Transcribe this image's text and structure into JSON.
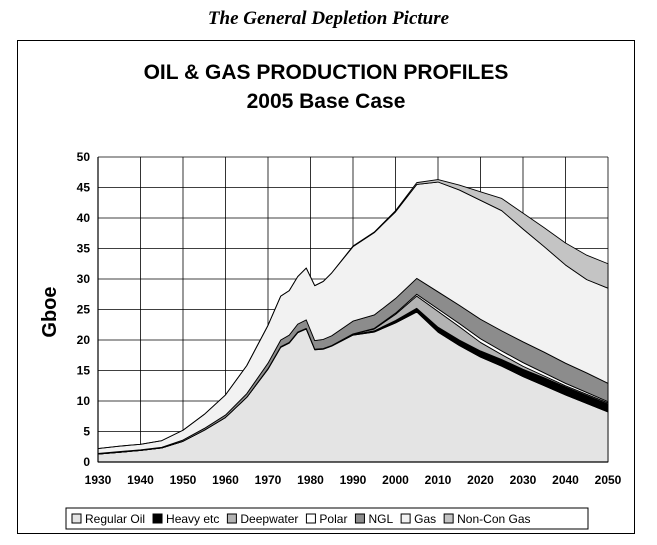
{
  "page_title": "The General Depletion Picture",
  "chart_data": {
    "type": "area",
    "stacked": true,
    "title": "OIL & GAS PRODUCTION PROFILES",
    "subtitle": "2005 Base Case",
    "xlabel": "",
    "ylabel": "Gboe",
    "xlim": [
      1930,
      2050
    ],
    "ylim": [
      0,
      50
    ],
    "grid": true,
    "legend_position": "bottom",
    "x_ticks": [
      1930,
      1940,
      1950,
      1960,
      1970,
      1980,
      1990,
      2000,
      2010,
      2020,
      2030,
      2040,
      2050
    ],
    "y_ticks": [
      0,
      5,
      10,
      15,
      20,
      25,
      30,
      35,
      40,
      45,
      50
    ],
    "x": [
      1930,
      1935,
      1940,
      1945,
      1950,
      1955,
      1960,
      1965,
      1970,
      1973,
      1975,
      1977,
      1979,
      1981,
      1983,
      1985,
      1990,
      1995,
      2000,
      2005,
      2010,
      2015,
      2020,
      2025,
      2030,
      2035,
      2040,
      2045,
      2050
    ],
    "series": [
      {
        "name": "Regular Oil",
        "color": "#e4e4e4",
        "values": [
          1.3,
          1.6,
          1.9,
          2.3,
          3.4,
          5.2,
          7.3,
          10.6,
          15.2,
          18.8,
          19.5,
          21.2,
          21.8,
          18.4,
          18.5,
          19.0,
          20.8,
          21.3,
          22.8,
          24.6,
          21.3,
          19.1,
          17.2,
          15.7,
          14.0,
          12.5,
          11.0,
          9.6,
          8.2
        ]
      },
      {
        "name": "Heavy etc",
        "color": "#000000",
        "values": [
          0,
          0,
          0,
          0,
          0,
          0,
          0,
          0,
          0.1,
          0.1,
          0.1,
          0.1,
          0.1,
          0.1,
          0.1,
          0.1,
          0.1,
          0.2,
          0.4,
          0.6,
          0.8,
          0.9,
          1.0,
          1.1,
          1.2,
          1.3,
          1.3,
          1.3,
          1.3
        ]
      },
      {
        "name": "Deepwater",
        "color": "#b3b3b3",
        "values": [
          0,
          0,
          0,
          0,
          0,
          0,
          0,
          0,
          0,
          0,
          0,
          0,
          0,
          0,
          0,
          0,
          0.1,
          0.3,
          1.0,
          2.0,
          2.6,
          2.2,
          1.4,
          0.8,
          0.5,
          0.3,
          0.2,
          0.2,
          0.2
        ]
      },
      {
        "name": "Polar",
        "color": "#ffffff",
        "values": [
          0,
          0,
          0,
          0,
          0,
          0,
          0,
          0,
          0,
          0,
          0,
          0,
          0,
          0,
          0,
          0,
          0,
          0.1,
          0.2,
          0.3,
          0.4,
          0.5,
          0.6,
          0.6,
          0.6,
          0.5,
          0.4,
          0.3,
          0.2
        ]
      },
      {
        "name": "NGL",
        "color": "#8c8c8c",
        "values": [
          0.1,
          0.1,
          0.1,
          0.1,
          0.2,
          0.3,
          0.4,
          0.6,
          0.9,
          1.1,
          1.2,
          1.3,
          1.4,
          1.4,
          1.5,
          1.6,
          2.1,
          2.2,
          2.4,
          2.6,
          2.8,
          3.0,
          3.2,
          3.3,
          3.4,
          3.4,
          3.3,
          3.2,
          3.0
        ]
      },
      {
        "name": "Gas",
        "color": "#f2f2f2",
        "values": [
          0.8,
          0.9,
          0.9,
          1.1,
          1.6,
          2.3,
          3.3,
          4.6,
          6.2,
          7.2,
          7.3,
          7.8,
          8.5,
          9.0,
          9.5,
          10.3,
          12.2,
          13.5,
          14.2,
          15.4,
          18.0,
          18.9,
          19.5,
          19.7,
          18.5,
          17.3,
          16.1,
          15.3,
          15.6
        ]
      },
      {
        "name": "Non-Con Gas",
        "color": "#c4c4c4",
        "values": [
          0,
          0,
          0,
          0,
          0,
          0,
          0,
          0,
          0,
          0,
          0,
          0,
          0,
          0,
          0,
          0,
          0.1,
          0.1,
          0.2,
          0.3,
          0.4,
          0.8,
          1.4,
          2.0,
          2.6,
          3.1,
          3.6,
          4.0,
          4.0
        ]
      }
    ]
  }
}
